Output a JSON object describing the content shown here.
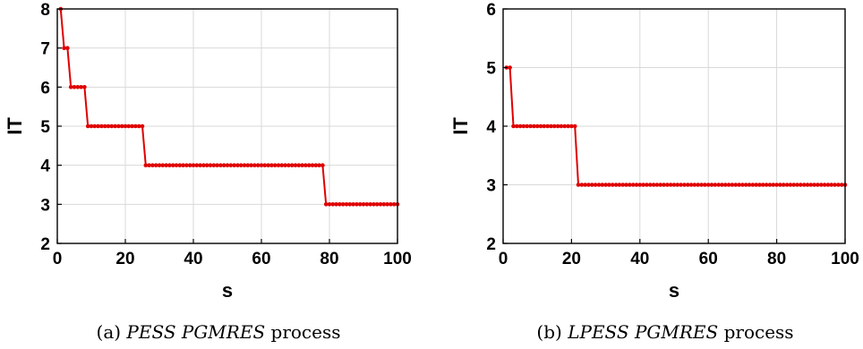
{
  "chart_data": [
    {
      "type": "line",
      "caption_label": "(a)",
      "caption_italic": "PESS PGMRES",
      "caption_rest": "process",
      "xlabel": "s",
      "ylabel": "IT",
      "xlim": [
        0,
        100
      ],
      "ylim": [
        2,
        8
      ],
      "xticks": [
        "0",
        "20",
        "40",
        "60",
        "80",
        "100"
      ],
      "yticks": [
        "2",
        "3",
        "4",
        "5",
        "6",
        "7",
        "8"
      ],
      "grid": true,
      "color": "#e00000",
      "steps": [
        {
          "from": 1,
          "to": 1,
          "value": 8
        },
        {
          "from": 2,
          "to": 3,
          "value": 7
        },
        {
          "from": 4,
          "to": 8,
          "value": 6
        },
        {
          "from": 9,
          "to": 25,
          "value": 5
        },
        {
          "from": 26,
          "to": 78,
          "value": 4
        },
        {
          "from": 79,
          "to": 100,
          "value": 3
        }
      ]
    },
    {
      "type": "line",
      "caption_label": "(b)",
      "caption_italic": "LPESS PGMRES",
      "caption_rest": "process",
      "xlabel": "s",
      "ylabel": "IT",
      "xlim": [
        0,
        100
      ],
      "ylim": [
        2,
        6
      ],
      "xticks": [
        "0",
        "20",
        "40",
        "60",
        "80",
        "100"
      ],
      "yticks": [
        "2",
        "3",
        "4",
        "5",
        "6"
      ],
      "grid": true,
      "color": "#e00000",
      "steps": [
        {
          "from": 1,
          "to": 2,
          "value": 5
        },
        {
          "from": 3,
          "to": 21,
          "value": 4
        },
        {
          "from": 22,
          "to": 100,
          "value": 3
        }
      ]
    }
  ]
}
